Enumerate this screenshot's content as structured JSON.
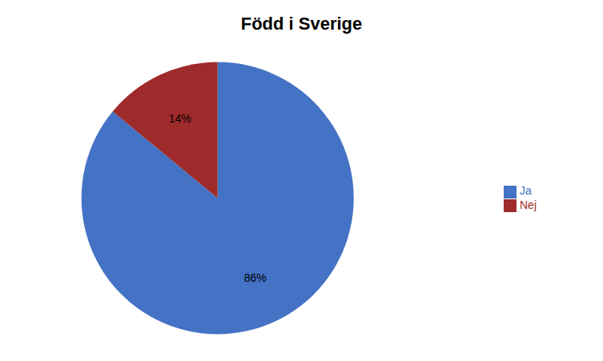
{
  "chart_data": {
    "type": "pie",
    "title": "Född i Sverige",
    "categories": [
      "Ja",
      "Nej"
    ],
    "values": [
      86,
      14
    ],
    "value_labels": [
      "86%",
      "14%"
    ],
    "colors": [
      "#4472C4",
      "#9E2A2B"
    ],
    "data_labels": true,
    "legend": "right"
  }
}
